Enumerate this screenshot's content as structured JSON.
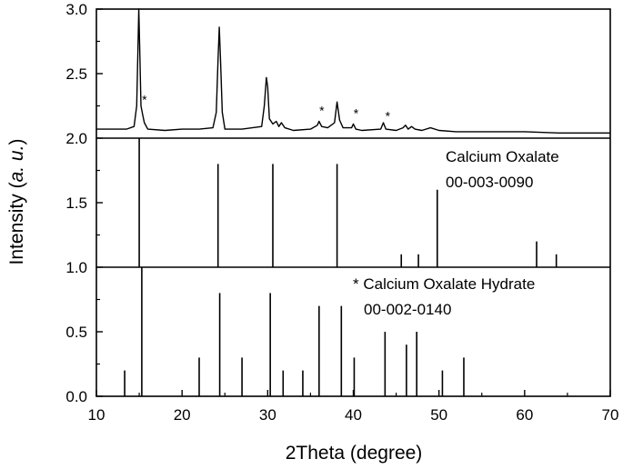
{
  "chart_data": {
    "type": "line",
    "xlabel": "2Theta (degree)",
    "ylabel_parts": [
      "Intensity (",
      "a. u.",
      ")"
    ],
    "xlim": [
      10,
      70
    ],
    "ylim": [
      0,
      3.0
    ],
    "x_ticks": [
      10,
      20,
      30,
      40,
      50,
      60,
      70
    ],
    "y_ticks": [
      "0.0",
      "0.5",
      "1.0",
      "1.5",
      "2.0",
      "2.5",
      "3.0"
    ],
    "y_tick_values": [
      0,
      0.5,
      1.0,
      1.5,
      2.0,
      2.5,
      3.0
    ],
    "separators": [
      1.0,
      2.0
    ],
    "measured_pattern": {
      "points": [
        [
          10.0,
          2.07
        ],
        [
          12.0,
          2.07
        ],
        [
          13.5,
          2.07
        ],
        [
          14.4,
          2.09
        ],
        [
          14.7,
          2.25
        ],
        [
          14.85,
          2.7
        ],
        [
          14.95,
          3.0
        ],
        [
          15.05,
          2.7
        ],
        [
          15.2,
          2.25
        ],
        [
          15.4,
          2.18
        ],
        [
          15.6,
          2.12
        ],
        [
          16.0,
          2.07
        ],
        [
          18.0,
          2.06
        ],
        [
          20.0,
          2.07
        ],
        [
          22.0,
          2.07
        ],
        [
          23.6,
          2.08
        ],
        [
          24.0,
          2.2
        ],
        [
          24.2,
          2.6
        ],
        [
          24.35,
          2.86
        ],
        [
          24.5,
          2.6
        ],
        [
          24.7,
          2.2
        ],
        [
          25.0,
          2.07
        ],
        [
          27.0,
          2.07
        ],
        [
          29.3,
          2.09
        ],
        [
          29.6,
          2.25
        ],
        [
          29.85,
          2.47
        ],
        [
          30.0,
          2.4
        ],
        [
          30.2,
          2.15
        ],
        [
          30.6,
          2.11
        ],
        [
          31.0,
          2.13
        ],
        [
          31.3,
          2.09
        ],
        [
          31.6,
          2.12
        ],
        [
          32.0,
          2.08
        ],
        [
          33.0,
          2.06
        ],
        [
          35.0,
          2.07
        ],
        [
          35.8,
          2.1
        ],
        [
          36.0,
          2.13
        ],
        [
          36.3,
          2.09
        ],
        [
          37.0,
          2.08
        ],
        [
          37.8,
          2.12
        ],
        [
          38.1,
          2.28
        ],
        [
          38.4,
          2.14
        ],
        [
          38.8,
          2.08
        ],
        [
          39.8,
          2.08
        ],
        [
          40.0,
          2.11
        ],
        [
          40.3,
          2.07
        ],
        [
          41.0,
          2.06
        ],
        [
          43.2,
          2.07
        ],
        [
          43.5,
          2.12
        ],
        [
          43.8,
          2.07
        ],
        [
          45.0,
          2.06
        ],
        [
          45.8,
          2.08
        ],
        [
          46.1,
          2.1
        ],
        [
          46.4,
          2.07
        ],
        [
          46.8,
          2.09
        ],
        [
          47.2,
          2.07
        ],
        [
          48.0,
          2.06
        ],
        [
          49.0,
          2.08
        ],
        [
          50.0,
          2.06
        ],
        [
          52.0,
          2.05
        ],
        [
          56.0,
          2.05
        ],
        [
          60.0,
          2.05
        ],
        [
          64.0,
          2.04
        ],
        [
          70.0,
          2.04
        ]
      ],
      "star_markers": [
        15.3,
        36.0,
        40.0,
        43.7
      ]
    },
    "reference_patterns": [
      {
        "name": "Calcium Oxalate",
        "code": "00-003-0090",
        "baseline": 1.0,
        "peaks": [
          [
            15.0,
            2.0
          ],
          [
            24.2,
            1.8
          ],
          [
            30.6,
            1.8
          ],
          [
            38.1,
            1.8
          ],
          [
            45.6,
            1.1
          ],
          [
            47.6,
            1.1
          ],
          [
            49.8,
            1.6
          ],
          [
            61.4,
            1.2
          ],
          [
            63.7,
            1.1
          ]
        ]
      },
      {
        "name": "* Calcium Oxalate Hydrate",
        "code": "00-002-0140",
        "baseline": 0.0,
        "peaks": [
          [
            13.3,
            0.2
          ],
          [
            15.3,
            1.0
          ],
          [
            22.0,
            0.3
          ],
          [
            24.4,
            0.8
          ],
          [
            27.0,
            0.3
          ],
          [
            30.3,
            0.8
          ],
          [
            31.8,
            0.2
          ],
          [
            34.1,
            0.2
          ],
          [
            36.0,
            0.7
          ],
          [
            38.6,
            0.7
          ],
          [
            40.1,
            0.3
          ],
          [
            43.7,
            0.5
          ],
          [
            46.2,
            0.4
          ],
          [
            47.4,
            0.5
          ],
          [
            50.4,
            0.2
          ],
          [
            52.9,
            0.3
          ]
        ]
      }
    ]
  }
}
